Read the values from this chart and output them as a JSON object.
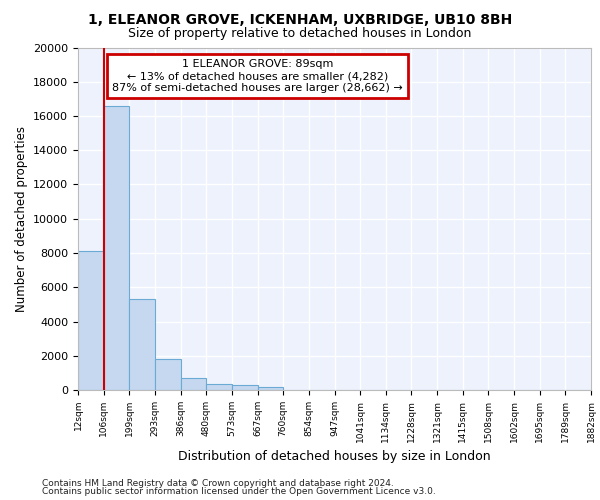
{
  "title_line1": "1, ELEANOR GROVE, ICKENHAM, UXBRIDGE, UB10 8BH",
  "title_line2": "Size of property relative to detached houses in London",
  "xlabel": "Distribution of detached houses by size in London",
  "ylabel": "Number of detached properties",
  "bar_values": [
    8100,
    16600,
    5300,
    1800,
    700,
    350,
    270,
    200,
    0,
    0,
    0,
    0,
    0,
    0,
    0,
    0,
    0,
    0,
    0,
    0
  ],
  "categories": [
    "12sqm",
    "106sqm",
    "199sqm",
    "293sqm",
    "386sqm",
    "480sqm",
    "573sqm",
    "667sqm",
    "760sqm",
    "854sqm",
    "947sqm",
    "1041sqm",
    "1134sqm",
    "1228sqm",
    "1321sqm",
    "1415sqm",
    "1508sqm",
    "1602sqm",
    "1695sqm",
    "1789sqm",
    "1882sqm"
  ],
  "bar_color": "#c5d8f0",
  "bar_edge_color": "#6aaad4",
  "annotation_line1": "1 ELEANOR GROVE: 89sqm",
  "annotation_line2": "← 13% of detached houses are smaller (4,282)",
  "annotation_line3": "87% of semi-detached houses are larger (28,662) →",
  "annotation_box_color": "#ffffff",
  "annotation_box_edge": "#cc0000",
  "vline_color": "#cc0000",
  "ylim": [
    0,
    20000
  ],
  "yticks": [
    0,
    2000,
    4000,
    6000,
    8000,
    10000,
    12000,
    14000,
    16000,
    18000,
    20000
  ],
  "background_color": "#edf2fc",
  "grid_color": "#ffffff",
  "footer_line1": "Contains HM Land Registry data © Crown copyright and database right 2024.",
  "footer_line2": "Contains public sector information licensed under the Open Government Licence v3.0."
}
